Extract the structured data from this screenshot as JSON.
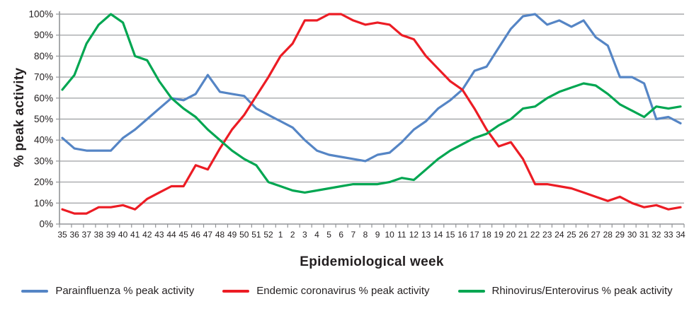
{
  "chart_data": {
    "type": "line",
    "title": "",
    "xlabel": "Epidemiological week",
    "ylabel": "% peak activity",
    "grid": true,
    "legend_position": "bottom",
    "ylim": [
      0,
      100
    ],
    "y_ticks": [
      "0%",
      "10%",
      "20%",
      "30%",
      "40%",
      "50%",
      "60%",
      "70%",
      "80%",
      "90%",
      "100%"
    ],
    "categories": [
      "35",
      "36",
      "37",
      "38",
      "39",
      "40",
      "41",
      "42",
      "43",
      "44",
      "45",
      "46",
      "47",
      "48",
      "49",
      "50",
      "51",
      "52",
      "1",
      "2",
      "3",
      "4",
      "5",
      "6",
      "7",
      "8",
      "9",
      "10",
      "11",
      "12",
      "13",
      "14",
      "15",
      "16",
      "17",
      "18",
      "19",
      "20",
      "21",
      "22",
      "23",
      "24",
      "25",
      "26",
      "27",
      "28",
      "29",
      "30",
      "31",
      "32",
      "33",
      "34"
    ],
    "series": [
      {
        "name": "Parainfluenza % peak activity",
        "color": "#5585c5",
        "values": [
          41,
          36,
          35,
          35,
          35,
          41,
          45,
          50,
          55,
          60,
          59,
          62,
          71,
          63,
          62,
          61,
          55,
          52,
          49,
          46,
          40,
          35,
          33,
          32,
          31,
          30,
          33,
          34,
          39,
          45,
          49,
          55,
          59,
          64,
          73,
          75,
          84,
          93,
          99,
          100,
          95,
          97,
          94,
          97,
          89,
          85,
          70,
          70,
          67,
          50,
          51,
          48
        ]
      },
      {
        "name": "Endemic coronavirus % peak activity",
        "color": "#ec1c24",
        "values": [
          7,
          5,
          5,
          8,
          8,
          9,
          7,
          12,
          15,
          18,
          18,
          28,
          26,
          36,
          45,
          52,
          61,
          70,
          80,
          86,
          97,
          97,
          100,
          100,
          97,
          95,
          96,
          95,
          90,
          88,
          80,
          74,
          68,
          64,
          55,
          45,
          37,
          39,
          31,
          19,
          19,
          18,
          17,
          15,
          13,
          11,
          13,
          10,
          8,
          9,
          7,
          8
        ]
      },
      {
        "name": "Rhinovirus/Enterovirus % peak activity",
        "color": "#00a651",
        "values": [
          64,
          71,
          86,
          95,
          100,
          96,
          80,
          78,
          68,
          60,
          55,
          51,
          45,
          40,
          35,
          31,
          28,
          20,
          18,
          16,
          15,
          16,
          17,
          18,
          19,
          19,
          19,
          20,
          22,
          21,
          26,
          31,
          35,
          38,
          41,
          43,
          47,
          50,
          55,
          56,
          60,
          63,
          65,
          67,
          66,
          62,
          57,
          54,
          51,
          56,
          55,
          56
        ]
      }
    ],
    "axis_color": "#939598",
    "gridline_color": "#a7a9ac"
  }
}
